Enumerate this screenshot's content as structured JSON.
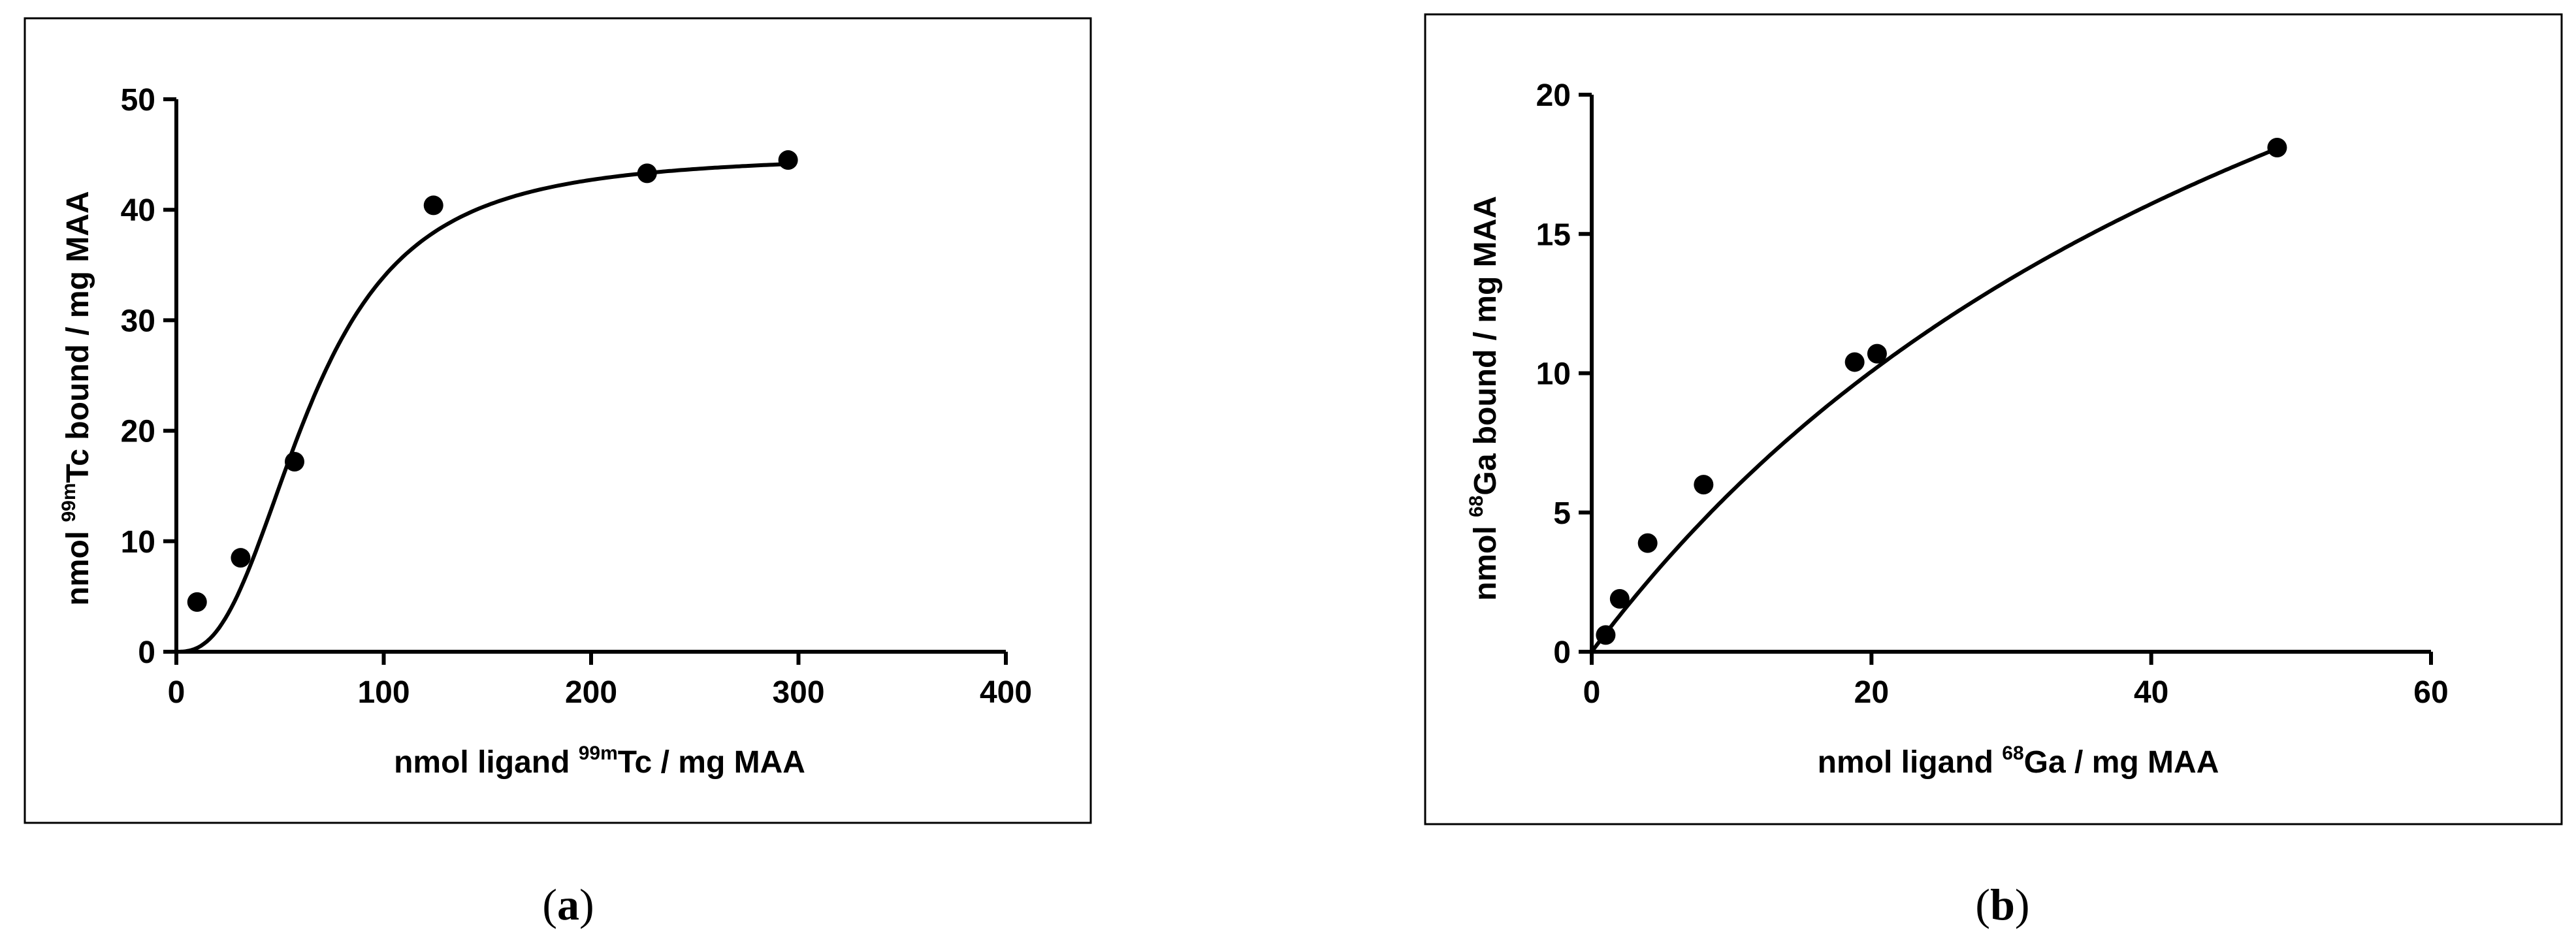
{
  "chart_data": [
    {
      "type": "scatter",
      "panel_label": "a",
      "xlabel": {
        "pre": "nmol ligand ",
        "sup": "99m",
        "post": "Tc / mg MAA"
      },
      "ylabel": {
        "pre": "nmol ",
        "sup": "99m",
        "post": "Tc bound / mg  MAA"
      },
      "xlim": [
        0,
        400
      ],
      "ylim": [
        0,
        50
      ],
      "x_ticks": [
        0,
        100,
        200,
        300,
        400
      ],
      "y_ticks": [
        0,
        10,
        20,
        30,
        40,
        50
      ],
      "grid": false,
      "series": [
        {
          "points": [
            {
              "x": 10,
              "y": 4.5
            },
            {
              "x": 31,
              "y": 8.5
            },
            {
              "x": 57,
              "y": 17.2
            },
            {
              "x": 124,
              "y": 40.4
            },
            {
              "x": 227,
              "y": 43.3
            },
            {
              "x": 295,
              "y": 44.5
            }
          ],
          "fit": {
            "model": "sigmoidal",
            "top": 45,
            "hill": 2.6,
            "half": 65
          }
        }
      ]
    },
    {
      "type": "scatter",
      "panel_label": "b",
      "xlabel": {
        "pre": "nmol ligand  ",
        "sup": "68",
        "post": "Ga / mg MAA"
      },
      "ylabel": {
        "pre": "nmol ",
        "sup": "68",
        "post": "Ga bound / mg  MAA"
      },
      "xlim": [
        0,
        60
      ],
      "ylim": [
        0,
        20
      ],
      "x_ticks": [
        0,
        20,
        40,
        60
      ],
      "y_ticks": [
        0,
        5,
        10,
        15,
        20
      ],
      "grid": false,
      "series": [
        {
          "points": [
            {
              "x": 1,
              "y": 0.6
            },
            {
              "x": 2,
              "y": 1.9
            },
            {
              "x": 4,
              "y": 3.9
            },
            {
              "x": 8,
              "y": 6.0
            },
            {
              "x": 18.8,
              "y": 10.4
            },
            {
              "x": 20.4,
              "y": 10.7
            },
            {
              "x": 49,
              "y": 18.1
            }
          ],
          "fit": {
            "model": "hyperbolic",
            "bmax": 40,
            "kd": 59.5
          }
        }
      ]
    }
  ]
}
